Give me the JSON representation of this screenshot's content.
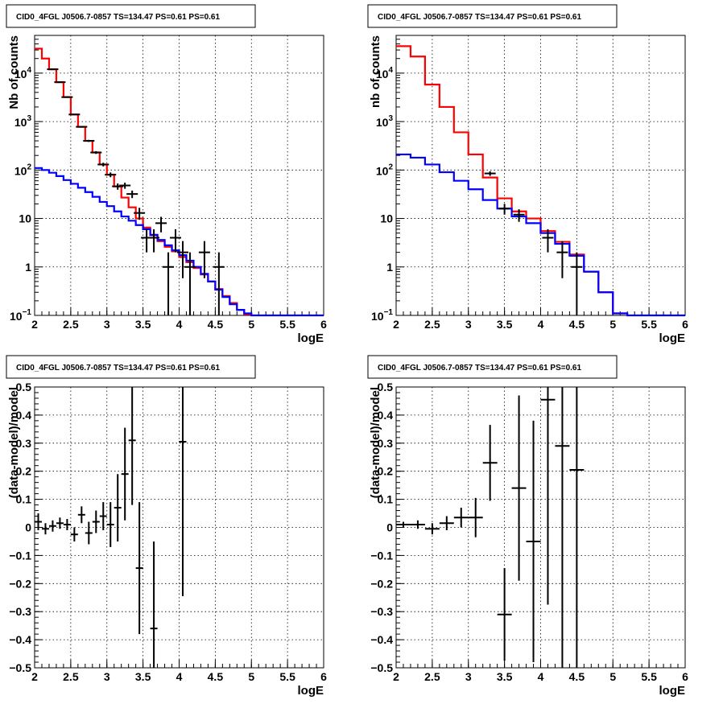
{
  "chart_data": [
    {
      "type": "histogram",
      "title": "CID0_4FGL J0506.7-0857 TS=134.47 PS=0.61 PS=0.61",
      "xlabel": "logE",
      "ylabel": "Nb of counts",
      "xlim": [
        2,
        6
      ],
      "ylim": [
        0.1,
        60000
      ],
      "yscale": "log",
      "x_ticks": [
        "2",
        "2.5",
        "3",
        "3.5",
        "4",
        "4.5",
        "5",
        "5.5",
        "6"
      ],
      "y_ticks": [
        {
          "v": 0.1,
          "base": "10",
          "exp": "−1"
        },
        {
          "v": 1,
          "text": "1"
        },
        {
          "v": 10,
          "text": "10"
        },
        {
          "v": 100,
          "base": "10",
          "exp": "2"
        },
        {
          "v": 1000,
          "base": "10",
          "exp": "3"
        },
        {
          "v": 10000,
          "base": "10",
          "exp": "4"
        }
      ],
      "grid": true,
      "bin_edges": [
        2.0,
        2.1,
        2.2,
        2.3,
        2.4,
        2.5,
        2.6,
        2.7,
        2.8,
        2.9,
        3.0,
        3.1,
        3.2,
        3.3,
        3.4,
        3.5,
        3.6,
        3.7,
        3.8,
        3.9,
        4.0,
        4.1,
        4.2,
        4.3,
        4.4,
        4.5,
        4.6,
        4.7,
        4.8,
        4.9,
        5.0,
        5.1,
        5.2,
        5.3,
        5.4,
        5.5,
        5.6,
        5.7,
        5.8,
        5.9,
        6.0
      ],
      "series": [
        {
          "color": "#ff0000",
          "style": "step",
          "values": [
            32000,
            20000,
            12000,
            6500,
            3200,
            1400,
            780,
            400,
            230,
            130,
            80,
            46,
            27,
            17,
            10,
            6.5,
            4.5,
            3.4,
            2.6,
            2.1,
            1.6,
            1.25,
            0.95,
            0.7,
            0.5,
            0.35,
            0.25,
            0.18,
            0.13,
            0.105,
            null,
            null,
            null,
            null,
            null,
            null,
            null,
            null,
            null,
            null
          ]
        },
        {
          "color": "#0000ff",
          "style": "step",
          "values": [
            110,
            100,
            88,
            75,
            62,
            52,
            43,
            35,
            28,
            22,
            18,
            14,
            11,
            9,
            7.3,
            6,
            4.6,
            3.6,
            2.8,
            2.2,
            1.75,
            1.35,
            1.0,
            0.72,
            0.5,
            0.34,
            0.24,
            0.17,
            0.13,
            0.11,
            0.1,
            0.1,
            0.1,
            0.1,
            0.1,
            0.1,
            0.1,
            0.1,
            0.1,
            0.1
          ]
        },
        {
          "color": "#000000",
          "style": "points",
          "x": [
            2.25,
            2.35,
            2.45,
            2.55,
            2.65,
            2.75,
            2.85,
            2.95,
            3.05,
            3.15,
            3.25,
            3.35,
            3.45,
            3.55,
            3.65,
            3.75,
            3.85,
            3.95,
            4.05,
            4.15,
            4.35,
            4.55
          ],
          "y": [
            12000,
            6500,
            3200,
            1400,
            780,
            400,
            230,
            130,
            80,
            46,
            48,
            32,
            13,
            4,
            4,
            8,
            1,
            4,
            2,
            1,
            2,
            1
          ]
        }
      ]
    },
    {
      "type": "histogram",
      "title": "CID0_4FGL J0506.7-0857 TS=134.47 PS=0.61 PS=0.61",
      "xlabel": "logE",
      "ylabel": "nb of counts",
      "xlim": [
        2,
        6
      ],
      "ylim": [
        0.1,
        60000
      ],
      "yscale": "log",
      "x_ticks": [
        "2",
        "2.5",
        "3",
        "3.5",
        "4",
        "4.5",
        "5",
        "5.5",
        "6"
      ],
      "y_ticks": [
        {
          "v": 0.1,
          "base": "10",
          "exp": "−1"
        },
        {
          "v": 1,
          "text": "1"
        },
        {
          "v": 10,
          "text": "10"
        },
        {
          "v": 100,
          "base": "10",
          "exp": "2"
        },
        {
          "v": 1000,
          "base": "10",
          "exp": "3"
        },
        {
          "v": 10000,
          "base": "10",
          "exp": "4"
        }
      ],
      "grid": true,
      "bin_edges": [
        2.0,
        2.2,
        2.4,
        2.6,
        2.8,
        3.0,
        3.2,
        3.4,
        3.6,
        3.8,
        4.0,
        4.2,
        4.4,
        4.6,
        4.8,
        5.0,
        5.2,
        5.4,
        5.6,
        5.8,
        6.0
      ],
      "series": [
        {
          "color": "#ff0000",
          "style": "step",
          "values": [
            36000,
            22000,
            5800,
            2000,
            600,
            210,
            70,
            26,
            14,
            10,
            5.5,
            3.3,
            1.8,
            0.8,
            0.3,
            0.11,
            null,
            null,
            null,
            null
          ]
        },
        {
          "color": "#0000ff",
          "style": "step",
          "values": [
            210,
            180,
            130,
            90,
            60,
            40,
            24,
            16,
            11,
            8,
            5,
            3,
            1.7,
            0.8,
            0.3,
            0.11,
            0.1,
            0.1,
            0.1,
            0.1
          ]
        },
        {
          "color": "#000000",
          "style": "points",
          "x": [
            3.3,
            3.5,
            3.7,
            4.1,
            4.3,
            4.5
          ],
          "y": [
            85,
            16,
            12,
            4,
            2,
            1
          ]
        }
      ]
    },
    {
      "type": "scatter",
      "title": "CID0_4FGL J0506.7-0857 TS=134.47 PS=0.61 PS=0.61",
      "xlabel": "logE",
      "ylabel": "(data-model)/model",
      "xlim": [
        2,
        6
      ],
      "ylim": [
        -0.5,
        0.5
      ],
      "x_ticks": [
        "2",
        "2.5",
        "3",
        "3.5",
        "4",
        "4.5",
        "5",
        "5.5",
        "6"
      ],
      "y_ticks": [
        "−0.5",
        "−0.4",
        "−0.3",
        "−0.2",
        "−0.1",
        "0",
        "0.1",
        "0.2",
        "0.3",
        "0.4",
        "0.5"
      ],
      "grid": true,
      "points": [
        {
          "x": 2.05,
          "y": 0.02,
          "err": 0.03
        },
        {
          "x": 2.15,
          "y": -0.005,
          "err": 0.02
        },
        {
          "x": 2.25,
          "y": 0.005,
          "err": 0.02
        },
        {
          "x": 2.35,
          "y": 0.015,
          "err": 0.02
        },
        {
          "x": 2.45,
          "y": 0.01,
          "err": 0.02
        },
        {
          "x": 2.55,
          "y": -0.025,
          "err": 0.025
        },
        {
          "x": 2.65,
          "y": 0.045,
          "err": 0.03
        },
        {
          "x": 2.75,
          "y": -0.02,
          "err": 0.04
        },
        {
          "x": 2.85,
          "y": 0.02,
          "err": 0.04
        },
        {
          "x": 2.95,
          "y": 0.04,
          "err": 0.05
        },
        {
          "x": 3.05,
          "y": 0.01,
          "err": 0.08
        },
        {
          "x": 3.15,
          "y": 0.07,
          "err": 0.12
        },
        {
          "x": 3.25,
          "y": 0.19,
          "err": 0.165
        },
        {
          "x": 3.35,
          "y": 0.31,
          "err": 0.23
        },
        {
          "x": 3.45,
          "y": -0.145,
          "err": 0.235
        },
        {
          "x": 3.65,
          "y": -0.36,
          "err": 0.31
        },
        {
          "x": 4.05,
          "y": 0.305,
          "err": 0.55
        }
      ]
    },
    {
      "type": "scatter",
      "title": "CID0_4FGL J0506.7-0857 TS=134.47 PS=0.61 PS=0.61",
      "xlabel": "logE",
      "ylabel": "(data-model)/model",
      "xlim": [
        2,
        6
      ],
      "ylim": [
        -0.5,
        0.5
      ],
      "x_ticks": [
        "2",
        "2.5",
        "3",
        "3.5",
        "4",
        "4.5",
        "5",
        "5.5",
        "6"
      ],
      "y_ticks": [
        "−0.5",
        "−0.4",
        "−0.3",
        "−0.2",
        "−0.1",
        "0",
        "0.1",
        "0.2",
        "0.3",
        "0.4",
        "0.5"
      ],
      "grid": true,
      "points": [
        {
          "x": 2.1,
          "y": 0.01,
          "err": 0.01
        },
        {
          "x": 2.3,
          "y": 0.01,
          "err": 0.015
        },
        {
          "x": 2.5,
          "y": -0.005,
          "err": 0.02
        },
        {
          "x": 2.7,
          "y": 0.015,
          "err": 0.025
        },
        {
          "x": 2.9,
          "y": 0.035,
          "err": 0.035
        },
        {
          "x": 3.1,
          "y": 0.035,
          "err": 0.07
        },
        {
          "x": 3.3,
          "y": 0.23,
          "err": 0.135
        },
        {
          "x": 3.5,
          "y": -0.31,
          "err": 0.165
        },
        {
          "x": 3.7,
          "y": 0.14,
          "err": 0.33
        },
        {
          "x": 3.9,
          "y": -0.05,
          "err": 0.43
        },
        {
          "x": 4.1,
          "y": 0.455,
          "err": 0.73
        },
        {
          "x": 4.3,
          "y": 0.29,
          "err": 0.9
        },
        {
          "x": 4.5,
          "y": 0.205,
          "err": 1.0
        }
      ]
    }
  ]
}
